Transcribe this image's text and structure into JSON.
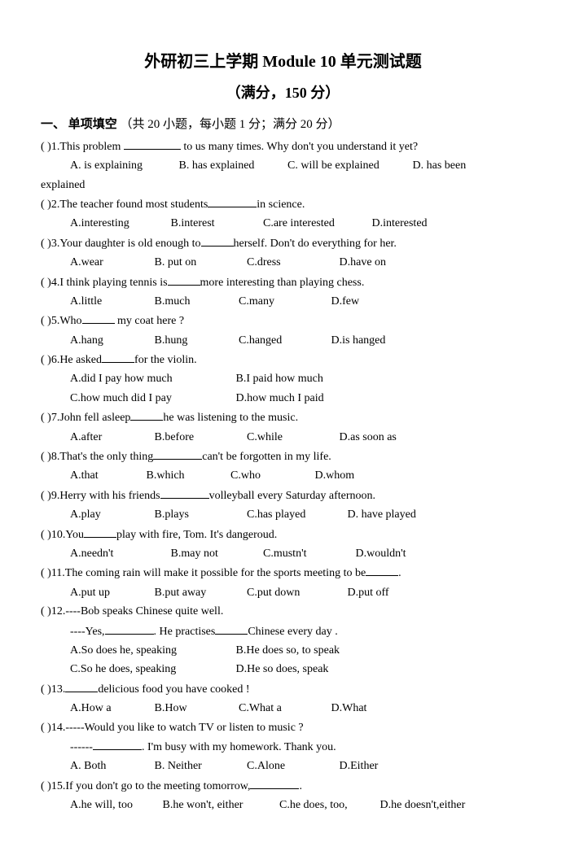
{
  "title": "外研初三上学期 Module 10 单元测试题",
  "subtitle": "（满分，150 分）",
  "section1": {
    "label": "一、 单项填空",
    "note": "（共 20 小题，每小题 1 分；满分 20 分）"
  },
  "q1": {
    "stem_a": "(     )1.This problem ",
    "stem_b": " to us many times. Why don't you understand it yet?",
    "A": "A. is explaining",
    "B": "B. has explained",
    "C": "C. will be explained",
    "D_a": "D. has been",
    "D_b": "explained"
  },
  "q2": {
    "stem_a": "(     )2.The teacher found most students",
    "stem_b": "in science.",
    "A": "A.interesting",
    "B": "B.interest",
    "C": "C.are interested",
    "D": "D.interested"
  },
  "q3": {
    "stem_a": "(     )3.Your daughter is old enough to",
    "stem_b": "herself. Don't do everything for her.",
    "A": "A.wear",
    "B": "B. put on",
    "C": "C.dress",
    "D": "D.have on"
  },
  "q4": {
    "stem_a": "(     )4.I think playing tennis is",
    "stem_b": "more interesting than playing chess.",
    "A": "A.little",
    "B": "B.much",
    "C": "C.many",
    "D": "D.few"
  },
  "q5": {
    "stem_a": "(     )5.Who",
    "stem_b": " my coat here ?",
    "A": "A.hang",
    "B": "B.hung",
    "C": "C.hanged",
    "D": "D.is hanged"
  },
  "q6": {
    "stem_a": "(     )6.He asked",
    "stem_b": "for the violin.",
    "A": "A.did I pay how much",
    "B": "B.I paid how much",
    "C": "C.how much did I pay",
    "D": "D.how much I paid"
  },
  "q7": {
    "stem_a": "(     )7.John fell asleep",
    "stem_b": "he was listening to the music.",
    "A": "A.after",
    "B": "B.before",
    "C": "C.while",
    "D": "D.as soon as"
  },
  "q8": {
    "stem_a": "(     )8.That's the only thing",
    "stem_b": "can't be forgotten in my life.",
    "A": "A.that",
    "B": "B.which",
    "C": "C.who",
    "D": "D.whom"
  },
  "q9": {
    "stem_a": "(     )9.Herry with his friends",
    "stem_b": "volleyball every Saturday afternoon.",
    "A": "A.play",
    "B": "B.plays",
    "C": "C.has played",
    "D": "D. have played"
  },
  "q10": {
    "stem_a": "(     )10.You",
    "stem_b": "play with fire, Tom. It's dangeroud.",
    "A": "A.needn't",
    "B": "B.may not",
    "C": "C.mustn't",
    "D": "D.wouldn't"
  },
  "q11": {
    "stem_a": "(     )11.The coming rain will make it possible for the sports meeting to be",
    "stem_b": ".",
    "A": "A.put up",
    "B": "B.put away",
    "C": "C.put down",
    "D": "D.put off"
  },
  "q12": {
    "l1": "(     )12.----Bob speaks Chinese quite well.",
    "l2a": "----Yes,",
    "l2b": ". He practises",
    "l2c": "Chinese every day .",
    "A": "A.So does he, speaking",
    "B": "B.He does so, to speak",
    "C": "C.So he does, speaking",
    "D": "D.He so does, speak"
  },
  "q13": {
    "stem_a": "(     )13.",
    "stem_b": "delicious food you have cooked !",
    "A": "A.How a",
    "B": "B.How",
    "C": "C.What a",
    "D": "D.What"
  },
  "q14": {
    "l1": "(     )14.-----Would you like to watch TV or listen to music ?",
    "l2a": "------",
    "l2b": ". I'm busy with my homework. Thank you.",
    "A": "A. Both",
    "B": "B. Neither",
    "C": "C.Alone",
    "D": "D.Either"
  },
  "q15": {
    "stem_a": "(     )15.If you don't go to the meeting tomorrow,",
    "stem_b": ".",
    "A": "A.he will, too",
    "B": "B.he won't, either",
    "C": "C.he does, too,",
    "D": "D.he doesn't,either"
  }
}
